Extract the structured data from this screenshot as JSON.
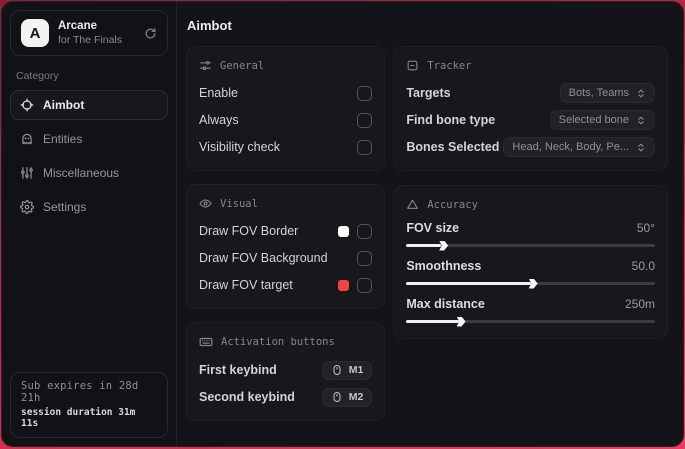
{
  "sidebar": {
    "brand": {
      "logo_letter": "A",
      "title": "Arcane",
      "subtitle": "for The Finals",
      "action_icon": "refresh-icon"
    },
    "category_label": "Category",
    "items": [
      {
        "label": "Aimbot",
        "icon": "crosshair-icon",
        "active": true
      },
      {
        "label": "Entities",
        "icon": "ghost-icon",
        "active": false
      },
      {
        "label": "Miscellaneous",
        "icon": "sliders-icon",
        "active": false
      },
      {
        "label": "Settings",
        "icon": "gear-icon",
        "active": false
      }
    ],
    "footer": {
      "line1": "Sub expires in 28d 21h",
      "line2": "session duration 31m 11s"
    }
  },
  "main": {
    "title": "Aimbot",
    "general": {
      "title": "General",
      "rows": [
        {
          "label": "Enable",
          "checked": false
        },
        {
          "label": "Always",
          "checked": false
        },
        {
          "label": "Visibility check",
          "checked": false
        }
      ]
    },
    "visual": {
      "title": "Visual",
      "rows": [
        {
          "label": "Draw FOV Border",
          "swatch": "#ffffff",
          "checked": false
        },
        {
          "label": "Draw FOV Background",
          "swatch": null,
          "checked": false
        },
        {
          "label": "Draw FOV target",
          "swatch": "#ef4444",
          "checked": false
        }
      ]
    },
    "activation": {
      "title": "Activation buttons",
      "rows": [
        {
          "label": "First keybind",
          "key": "M1"
        },
        {
          "label": "Second keybind",
          "key": "M2"
        }
      ]
    },
    "tracker": {
      "title": "Tracker",
      "rows": [
        {
          "label": "Targets",
          "value": "Bots, Teams"
        },
        {
          "label": "Find bone type",
          "value": "Selected bone"
        },
        {
          "label": "Bones Selected",
          "value": "Head, Neck, Body, Pe..."
        }
      ]
    },
    "accuracy": {
      "title": "Accuracy",
      "sliders": [
        {
          "label": "FOV size",
          "value": "50°",
          "percent": 14
        },
        {
          "label": "Smoothness",
          "value": "50.0",
          "percent": 50
        },
        {
          "label": "Max distance",
          "value": "250m",
          "percent": 21
        }
      ]
    }
  },
  "colors": {
    "accent_red": "#ef4444",
    "swatch_white": "#ffffff",
    "frame_red": "#c22743"
  }
}
